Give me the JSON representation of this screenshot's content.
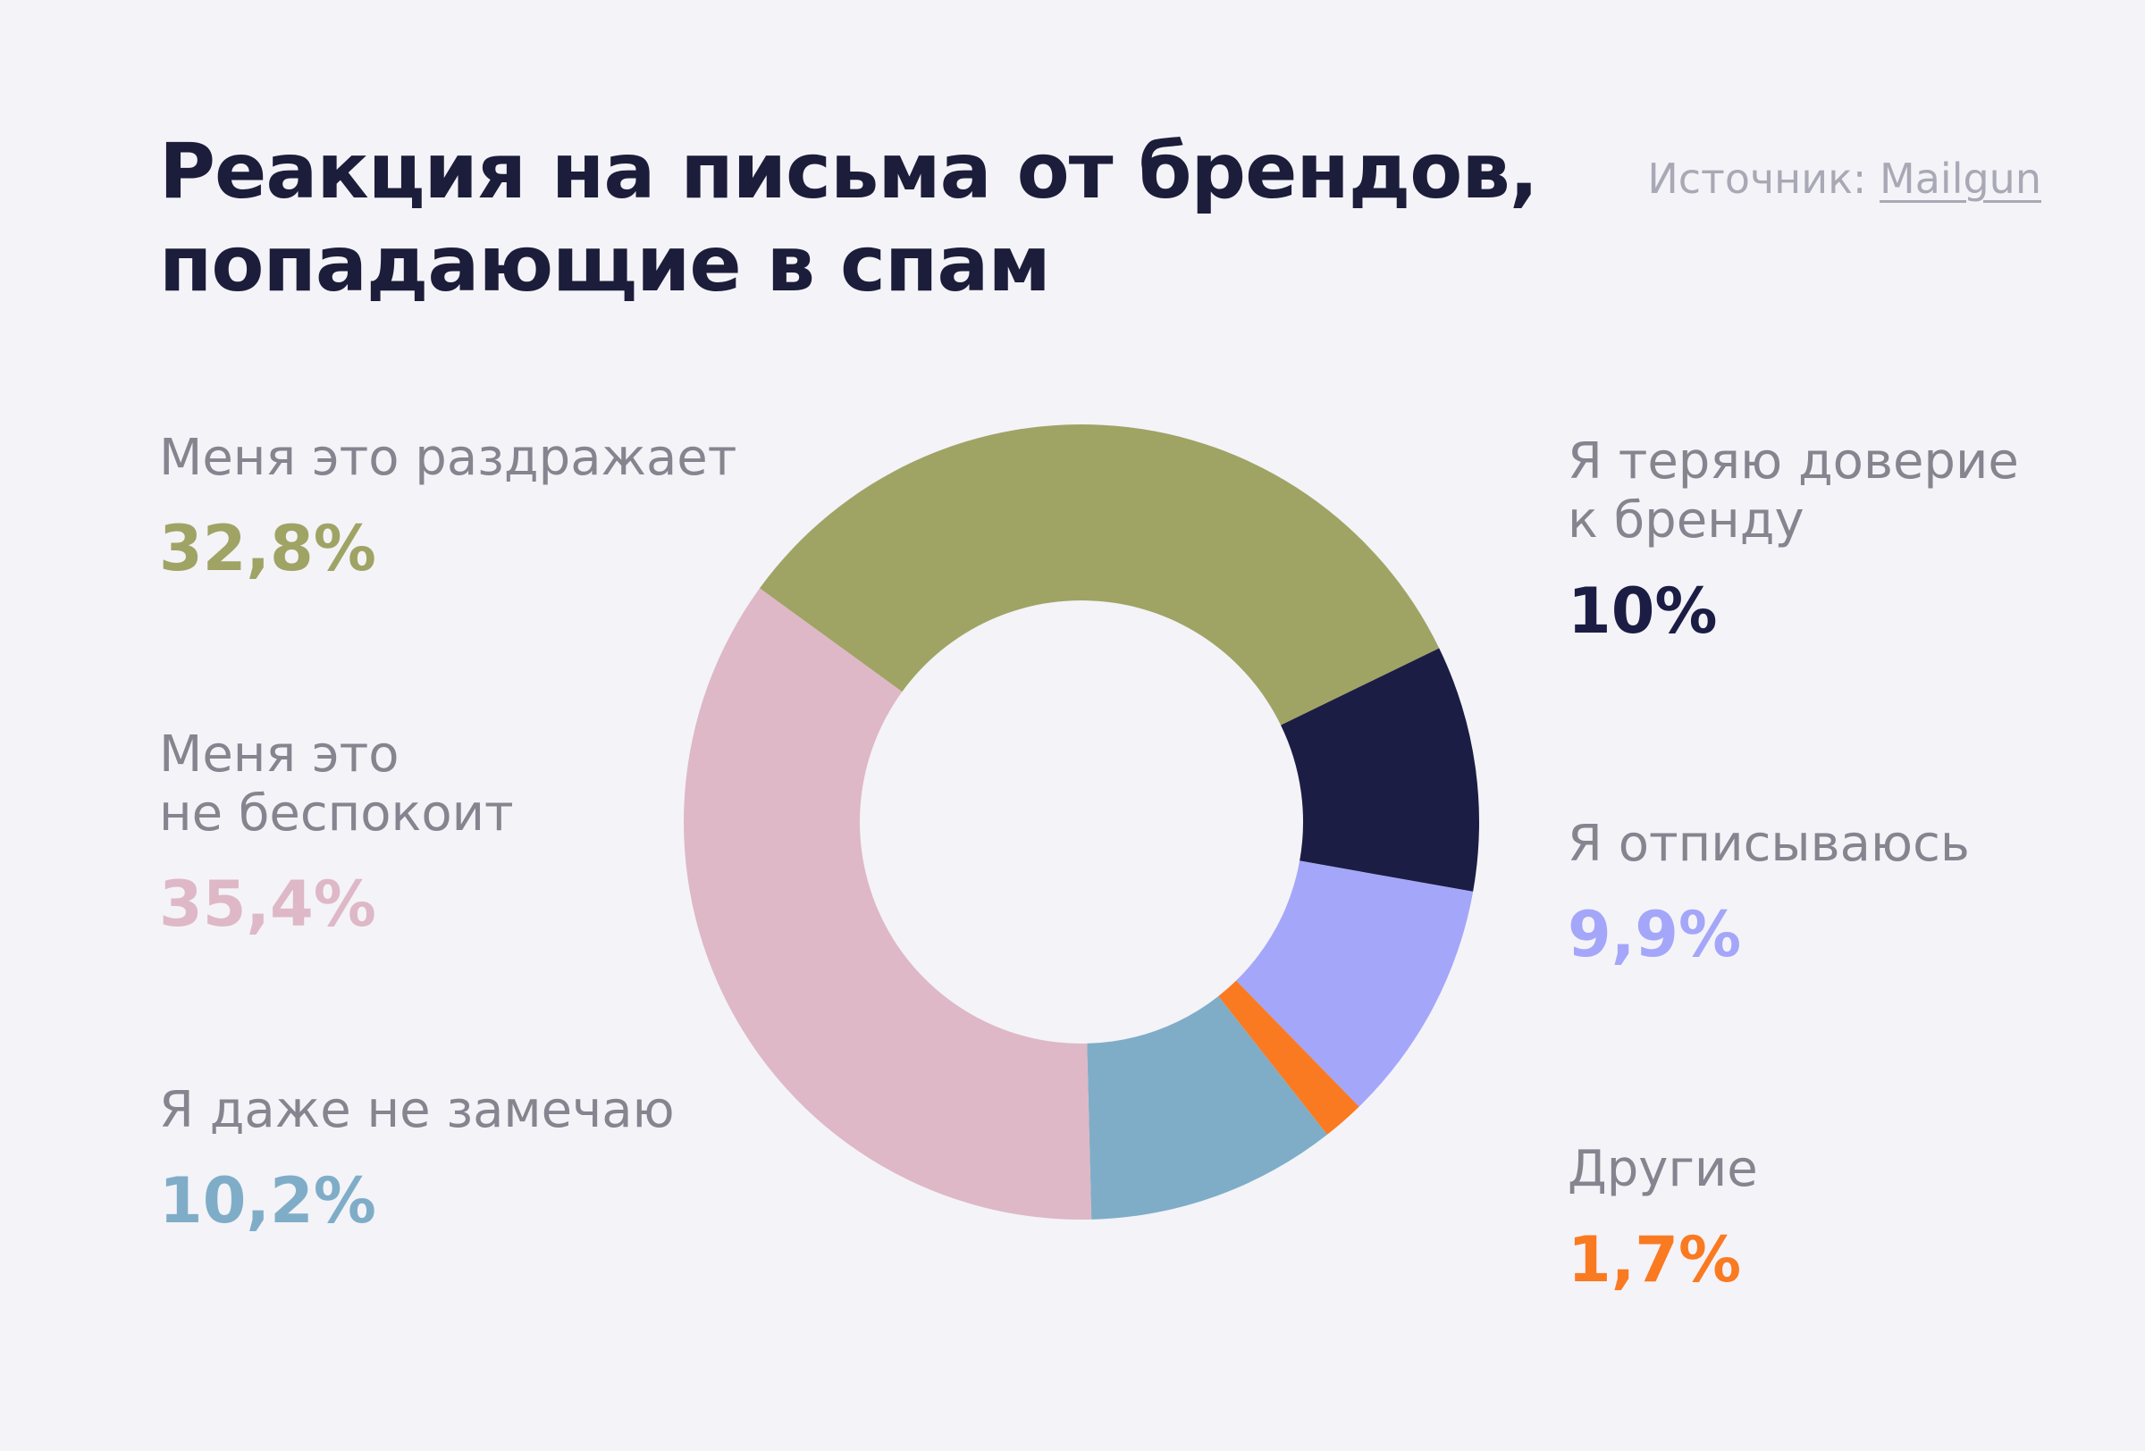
{
  "title": "Реакция на письма от брендов, попадающие в спам",
  "source": {
    "prefix": "Источник: ",
    "link_text": "Mailgun"
  },
  "chart_data": {
    "type": "pie",
    "donut": true,
    "title": "Реакция на письма от брендов, попадающие в спам",
    "slices": [
      {
        "label": "Меня это раздражает",
        "value": 32.8,
        "value_text": "32,8%",
        "color": "#9fa465"
      },
      {
        "label": "Я теряю доверие\nк бренду",
        "value": 10,
        "value_text": "10%",
        "color": "#1c1d44"
      },
      {
        "label": "Я отписываюсь",
        "value": 9.9,
        "value_text": "9,9%",
        "color": "#a3a6f9"
      },
      {
        "label": "Другие",
        "value": 1.7,
        "value_text": "1,7%",
        "color": "#fa7a22"
      },
      {
        "label": "Я даже не замечаю",
        "value": 10.2,
        "value_text": "10,2%",
        "color": "#7fadc8"
      },
      {
        "label": "Меня это\nне беспокоит",
        "value": 35.4,
        "value_text": "35,4%",
        "color": "#deb8c6"
      }
    ],
    "legend": {
      "left": [
        "Меня это раздражает",
        "Меня это\nне беспокоит",
        "Я даже не замечаю"
      ],
      "right": [
        "Я теряю доверие\nк бренду",
        "Я отписываюсь",
        "Другие"
      ]
    }
  }
}
